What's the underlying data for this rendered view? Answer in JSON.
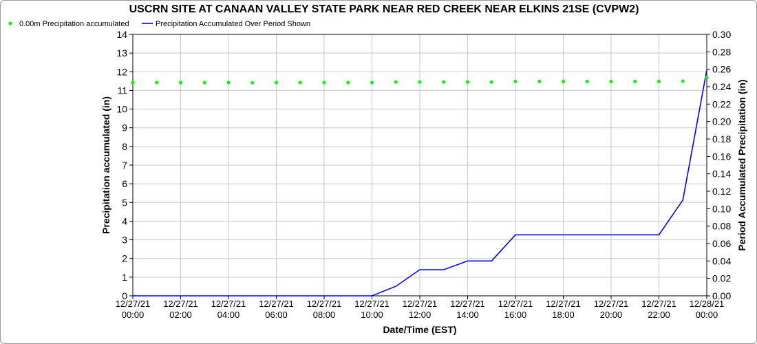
{
  "chart_data": {
    "type": "line",
    "title": "USCRN SITE AT CANAAN VALLEY STATE PARK NEAR RED CREEK NEAR ELKINS 21SE (CVPW2)",
    "xlabel": "Date/Time (EST)",
    "ylabel_left": "Precipitation accumulated (in)",
    "ylabel_right": "Period Accumulated Precipitation (in)",
    "left_ylim": [
      0,
      14
    ],
    "right_ylim": [
      0,
      0.3
    ],
    "left_ticks": [
      "0",
      "1",
      "2",
      "3",
      "4",
      "5",
      "6",
      "7",
      "8",
      "9",
      "10",
      "11",
      "12",
      "13",
      "14"
    ],
    "right_ticks": [
      "0.00",
      "0.02",
      "0.04",
      "0.06",
      "0.08",
      "0.10",
      "0.12",
      "0.14",
      "0.16",
      "0.18",
      "0.20",
      "0.22",
      "0.24",
      "0.26",
      "0.28",
      "0.30"
    ],
    "x_hours_range": [
      0,
      24
    ],
    "x_ticks": [
      {
        "date": "12/27/21",
        "time": "00:00"
      },
      {
        "date": "12/27/21",
        "time": "02:00"
      },
      {
        "date": "12/27/21",
        "time": "04:00"
      },
      {
        "date": "12/27/21",
        "time": "06:00"
      },
      {
        "date": "12/27/21",
        "time": "08:00"
      },
      {
        "date": "12/27/21",
        "time": "10:00"
      },
      {
        "date": "12/27/21",
        "time": "12:00"
      },
      {
        "date": "12/27/21",
        "time": "14:00"
      },
      {
        "date": "12/27/21",
        "time": "16:00"
      },
      {
        "date": "12/27/21",
        "time": "18:00"
      },
      {
        "date": "12/27/21",
        "time": "20:00"
      },
      {
        "date": "12/27/21",
        "time": "22:00"
      },
      {
        "date": "12/28/21",
        "time": "00:00"
      }
    ],
    "grid": true,
    "legend_position": "top-left",
    "series": [
      {
        "name": "0.00m Precipitation accumulated",
        "axis": "left",
        "style": "markers",
        "color": "#00ff00",
        "x": [
          "12/27/21 00:00",
          "12/27/21 01:00",
          "12/27/21 02:00",
          "12/27/21 03:00",
          "12/27/21 04:00",
          "12/27/21 05:00",
          "12/27/21 06:00",
          "12/27/21 07:00",
          "12/27/21 08:00",
          "12/27/21 09:00",
          "12/27/21 10:00",
          "12/27/21 11:00",
          "12/27/21 12:00",
          "12/27/21 13:00",
          "12/27/21 14:00",
          "12/27/21 15:00",
          "12/27/21 16:00",
          "12/27/21 17:00",
          "12/27/21 18:00",
          "12/27/21 19:00",
          "12/27/21 20:00",
          "12/27/21 21:00",
          "12/27/21 22:00",
          "12/27/21 23:00",
          "12/28/21 00:00"
        ],
        "y": [
          11.42,
          11.42,
          11.42,
          11.42,
          11.42,
          11.41,
          11.42,
          11.42,
          11.42,
          11.42,
          11.42,
          11.45,
          11.45,
          11.45,
          11.45,
          11.45,
          11.48,
          11.48,
          11.48,
          11.48,
          11.48,
          11.48,
          11.48,
          11.5,
          11.7
        ]
      },
      {
        "name": "Precipitation Accumulated Over Period Shown",
        "axis": "right",
        "style": "line",
        "color": "#0000ff",
        "x": [
          "12/27/21 00:00",
          "12/27/21 01:00",
          "12/27/21 02:00",
          "12/27/21 03:00",
          "12/27/21 04:00",
          "12/27/21 05:00",
          "12/27/21 06:00",
          "12/27/21 07:00",
          "12/27/21 08:00",
          "12/27/21 09:00",
          "12/27/21 10:00",
          "12/27/21 11:00",
          "12/27/21 12:00",
          "12/27/21 13:00",
          "12/27/21 14:00",
          "12/27/21 15:00",
          "12/27/21 16:00",
          "12/27/21 17:00",
          "12/27/21 18:00",
          "12/27/21 19:00",
          "12/27/21 20:00",
          "12/27/21 21:00",
          "12/27/21 22:00",
          "12/27/21 23:00",
          "12/28/21 00:00"
        ],
        "y": [
          0,
          0,
          0,
          0,
          0,
          0,
          0,
          0,
          0,
          0,
          0,
          0.011,
          0.03,
          0.03,
          0.04,
          0.04,
          0.07,
          0.07,
          0.07,
          0.07,
          0.07,
          0.07,
          0.07,
          0.11,
          0.259
        ]
      }
    ]
  }
}
